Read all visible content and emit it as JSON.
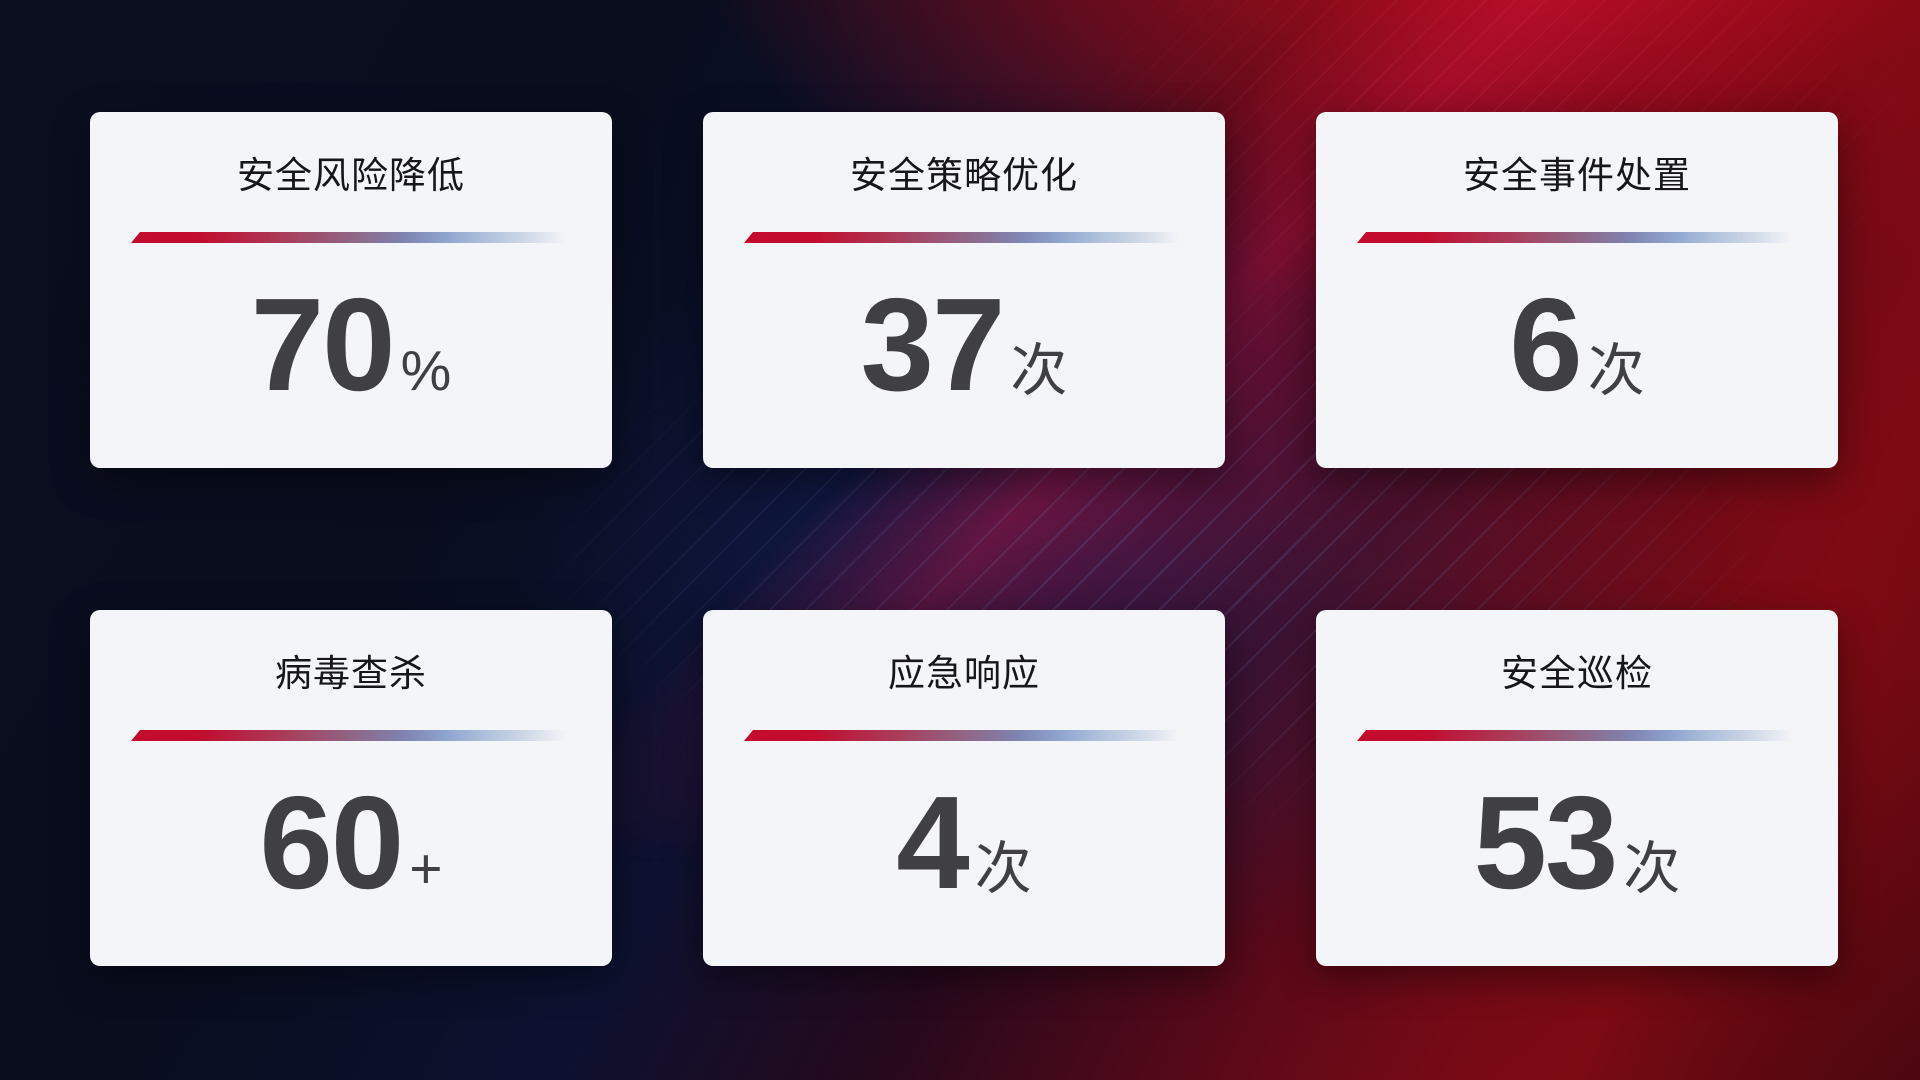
{
  "cards": [
    {
      "title": "安全风险降低",
      "value": "70",
      "unit": "%"
    },
    {
      "title": "安全策略优化",
      "value": "37",
      "unit": "次"
    },
    {
      "title": "安全事件处置",
      "value": "6",
      "unit": "次"
    },
    {
      "title": "病毒查杀",
      "value": "60",
      "unit": "+"
    },
    {
      "title": "应急响应",
      "value": "4",
      "unit": "次"
    },
    {
      "title": "安全巡检",
      "value": "53",
      "unit": "次"
    }
  ],
  "colors": {
    "card_bg": "#f4f5f8",
    "title_color": "#17171a",
    "value_color": "#3f3f44",
    "divider_red": "#c30b2e",
    "divider_blue": "#b0c2dd",
    "bg_dark_navy": "#0a0e1f",
    "bg_red": "#8c0c15",
    "bg_blue_glow": "#1b2d7a"
  }
}
